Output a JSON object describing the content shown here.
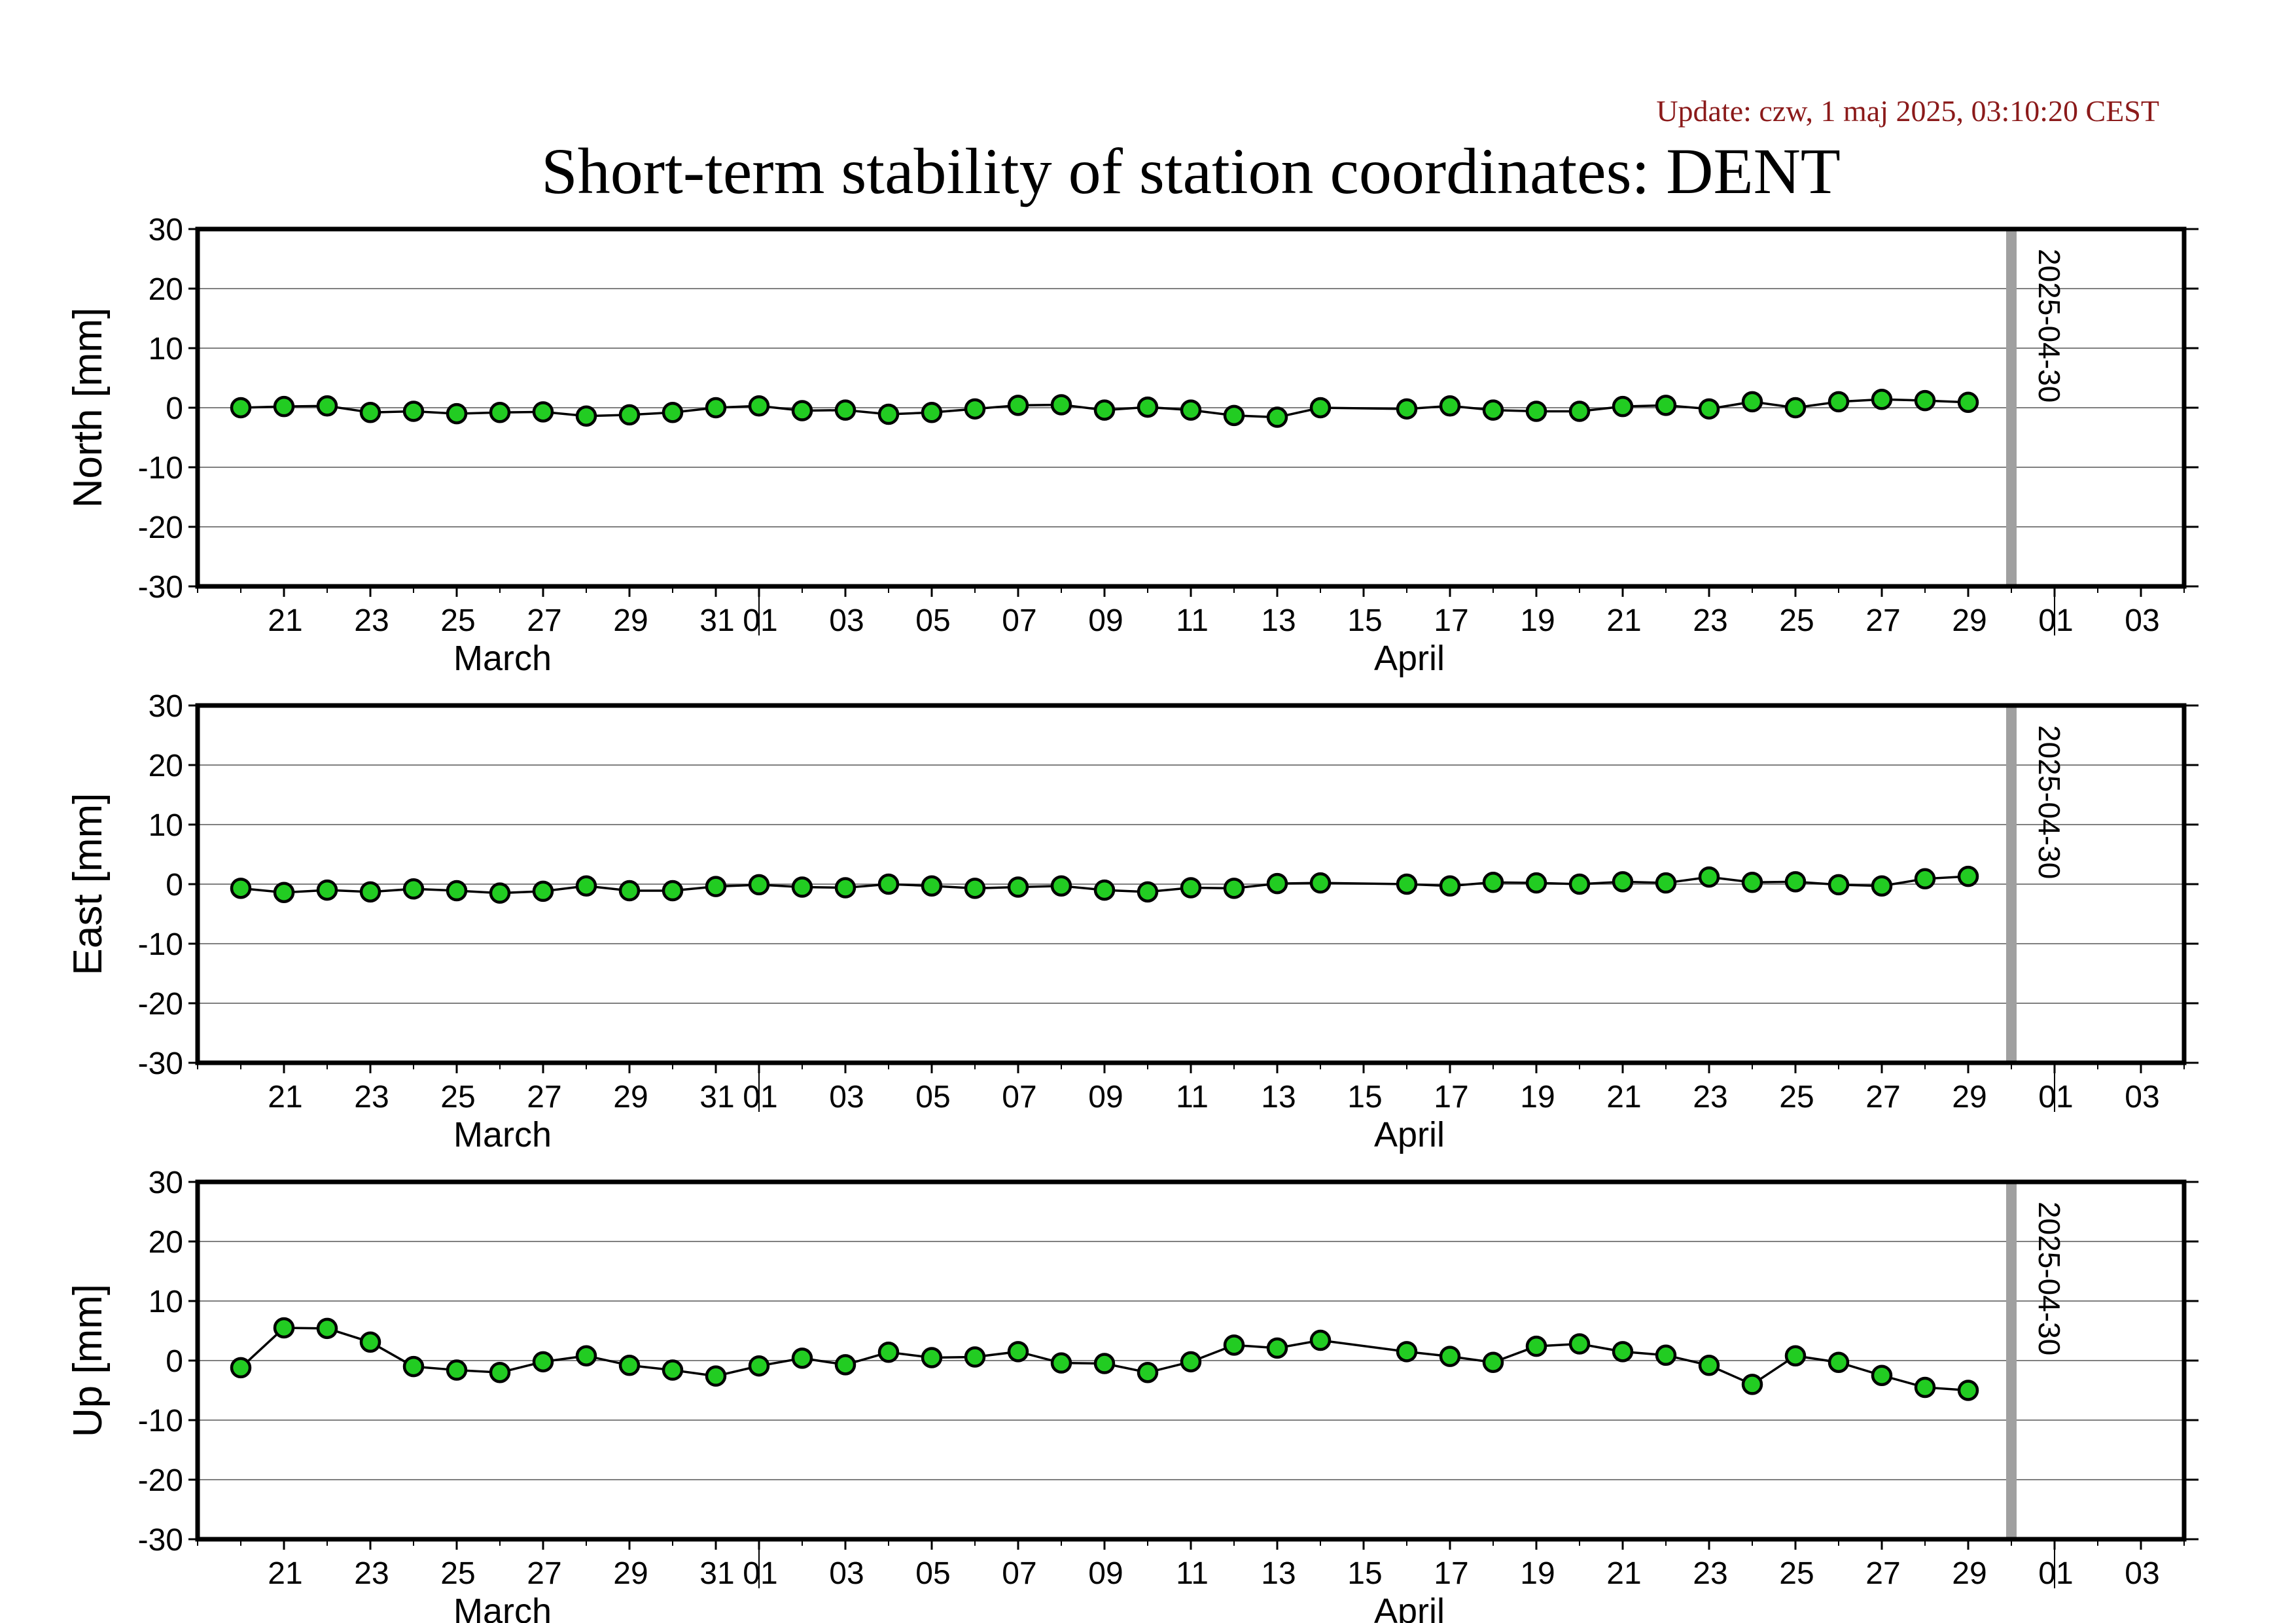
{
  "header": {
    "update_text": "Update: czw, 1 maj 2025, 03:10:20 CEST",
    "title": "Short-term stability of station coordinates: DENT"
  },
  "style": {
    "point_fill": "#22cc22",
    "point_stroke": "#000000",
    "line_color": "#000000",
    "grid_color": "#808080",
    "marker_color": "#a0a0a0",
    "update_color": "#8b1a1a"
  },
  "chart_data": [
    {
      "type": "line",
      "ylabel": "North [mm]",
      "ylim": [
        -30,
        30
      ],
      "yticks": [
        30,
        20,
        10,
        0,
        -10,
        -20,
        -30
      ],
      "xlim": [
        "2025-03-19",
        "2025-05-04"
      ],
      "xtick_labels": [
        "21",
        "23",
        "25",
        "27",
        "29",
        "31",
        "01",
        "03",
        "05",
        "07",
        "09",
        "11",
        "13",
        "15",
        "17",
        "19",
        "21",
        "23",
        "25",
        "27",
        "29",
        "01",
        "03"
      ],
      "month_labels": [
        "March",
        "April"
      ],
      "marker_label": "2025-04-30",
      "grid": true,
      "x": [
        "2025-03-20",
        "2025-03-21",
        "2025-03-22",
        "2025-03-23",
        "2025-03-24",
        "2025-03-25",
        "2025-03-26",
        "2025-03-27",
        "2025-03-28",
        "2025-03-29",
        "2025-03-30",
        "2025-03-31",
        "2025-04-01",
        "2025-04-02",
        "2025-04-03",
        "2025-04-04",
        "2025-04-05",
        "2025-04-06",
        "2025-04-07",
        "2025-04-08",
        "2025-04-09",
        "2025-04-10",
        "2025-04-11",
        "2025-04-12",
        "2025-04-13",
        "2025-04-14",
        "2025-04-16",
        "2025-04-17",
        "2025-04-18",
        "2025-04-19",
        "2025-04-20",
        "2025-04-21",
        "2025-04-22",
        "2025-04-23",
        "2025-04-24",
        "2025-04-25",
        "2025-04-26",
        "2025-04-27",
        "2025-04-28",
        "2025-04-29"
      ],
      "y": [
        0.0,
        0.2,
        0.3,
        -0.8,
        -0.6,
        -1.0,
        -0.8,
        -0.7,
        -1.4,
        -1.2,
        -0.8,
        0.0,
        0.3,
        -0.5,
        -0.4,
        -1.1,
        -0.8,
        -0.2,
        0.4,
        0.5,
        -0.4,
        0.1,
        -0.4,
        -1.3,
        -1.6,
        0.0,
        -0.2,
        0.3,
        -0.4,
        -0.6,
        -0.6,
        0.2,
        0.4,
        -0.2,
        1.0,
        0.0,
        1.0,
        1.4,
        1.2,
        0.9
      ]
    },
    {
      "type": "line",
      "ylabel": "East [mm]",
      "ylim": [
        -30,
        30
      ],
      "yticks": [
        30,
        20,
        10,
        0,
        -10,
        -20,
        -30
      ],
      "xlim": [
        "2025-03-19",
        "2025-05-04"
      ],
      "xtick_labels": [
        "21",
        "23",
        "25",
        "27",
        "29",
        "31",
        "01",
        "03",
        "05",
        "07",
        "09",
        "11",
        "13",
        "15",
        "17",
        "19",
        "21",
        "23",
        "25",
        "27",
        "29",
        "01",
        "03"
      ],
      "month_labels": [
        "March",
        "April"
      ],
      "marker_label": "2025-04-30",
      "grid": true,
      "x": [
        "2025-03-20",
        "2025-03-21",
        "2025-03-22",
        "2025-03-23",
        "2025-03-24",
        "2025-03-25",
        "2025-03-26",
        "2025-03-27",
        "2025-03-28",
        "2025-03-29",
        "2025-03-30",
        "2025-03-31",
        "2025-04-01",
        "2025-04-02",
        "2025-04-03",
        "2025-04-04",
        "2025-04-05",
        "2025-04-06",
        "2025-04-07",
        "2025-04-08",
        "2025-04-09",
        "2025-04-10",
        "2025-04-11",
        "2025-04-12",
        "2025-04-13",
        "2025-04-14",
        "2025-04-16",
        "2025-04-17",
        "2025-04-18",
        "2025-04-19",
        "2025-04-20",
        "2025-04-21",
        "2025-04-22",
        "2025-04-23",
        "2025-04-24",
        "2025-04-25",
        "2025-04-26",
        "2025-04-27",
        "2025-04-28",
        "2025-04-29"
      ],
      "y": [
        -0.7,
        -1.4,
        -1.0,
        -1.3,
        -0.8,
        -1.1,
        -1.5,
        -1.2,
        -0.3,
        -1.1,
        -1.1,
        -0.4,
        -0.1,
        -0.5,
        -0.6,
        0.0,
        -0.3,
        -0.7,
        -0.5,
        -0.3,
        -1.0,
        -1.3,
        -0.6,
        -0.7,
        0.1,
        0.2,
        0.0,
        -0.3,
        0.3,
        0.2,
        0.0,
        0.4,
        0.2,
        1.2,
        0.3,
        0.4,
        -0.1,
        -0.3,
        0.9,
        1.3
      ]
    },
    {
      "type": "line",
      "ylabel": "Up [mm]",
      "ylim": [
        -30,
        30
      ],
      "yticks": [
        30,
        20,
        10,
        0,
        -10,
        -20,
        -30
      ],
      "xlim": [
        "2025-03-19",
        "2025-05-04"
      ],
      "xtick_labels": [
        "21",
        "23",
        "25",
        "27",
        "29",
        "31",
        "01",
        "03",
        "05",
        "07",
        "09",
        "11",
        "13",
        "15",
        "17",
        "19",
        "21",
        "23",
        "25",
        "27",
        "29",
        "01",
        "03"
      ],
      "month_labels": [
        "March",
        "April"
      ],
      "marker_label": "2025-04-30",
      "grid": true,
      "x": [
        "2025-03-20",
        "2025-03-21",
        "2025-03-22",
        "2025-03-23",
        "2025-03-24",
        "2025-03-25",
        "2025-03-26",
        "2025-03-27",
        "2025-03-28",
        "2025-03-29",
        "2025-03-30",
        "2025-03-31",
        "2025-04-01",
        "2025-04-02",
        "2025-04-03",
        "2025-04-04",
        "2025-04-05",
        "2025-04-06",
        "2025-04-07",
        "2025-04-08",
        "2025-04-09",
        "2025-04-10",
        "2025-04-11",
        "2025-04-12",
        "2025-04-13",
        "2025-04-14",
        "2025-04-16",
        "2025-04-17",
        "2025-04-18",
        "2025-04-19",
        "2025-04-20",
        "2025-04-21",
        "2025-04-22",
        "2025-04-23",
        "2025-04-24",
        "2025-04-25",
        "2025-04-26",
        "2025-04-27",
        "2025-04-28",
        "2025-04-29"
      ],
      "y": [
        -1.2,
        5.5,
        5.4,
        3.1,
        -1.0,
        -1.6,
        -2.0,
        -0.2,
        0.8,
        -0.8,
        -1.6,
        -2.6,
        -0.9,
        0.4,
        -0.7,
        1.4,
        0.5,
        0.6,
        1.5,
        -0.4,
        -0.5,
        -2.0,
        -0.2,
        2.6,
        2.1,
        3.4,
        1.5,
        0.7,
        -0.3,
        2.4,
        2.8,
        1.5,
        0.9,
        -0.8,
        -4.0,
        0.8,
        -0.3,
        -2.5,
        -4.5,
        -5.0
      ]
    }
  ]
}
